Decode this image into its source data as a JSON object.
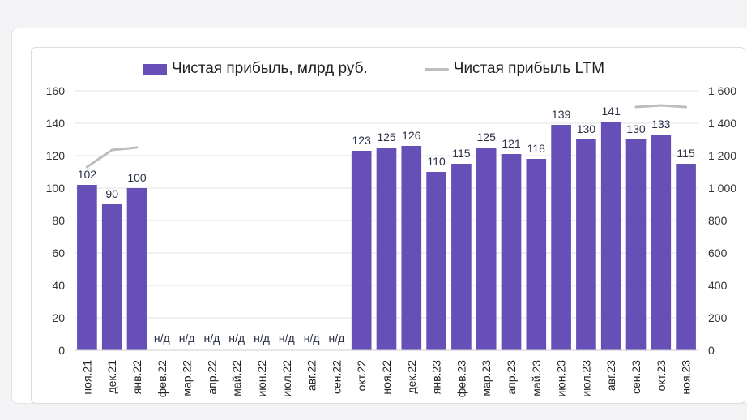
{
  "chart_data": {
    "type": "bar",
    "series": [
      {
        "name": "Чистая прибыль, млрд руб.",
        "type": "bar",
        "axis": "left",
        "color": "#6650b8",
        "values": [
          102,
          90,
          100,
          null,
          null,
          null,
          null,
          null,
          null,
          null,
          null,
          123,
          125,
          126,
          110,
          115,
          125,
          121,
          118,
          139,
          130,
          141,
          130,
          133,
          115
        ],
        "labels": [
          "102",
          "90",
          "100",
          "н/д",
          "н/д",
          "н/д",
          "н/д",
          "н/д",
          "н/д",
          "н/д",
          "н/д",
          "123",
          "125",
          "126",
          "110",
          "115",
          "125",
          "121",
          "118",
          "139",
          "130",
          "141",
          "130",
          "133",
          "115"
        ]
      },
      {
        "name": "Чистая прибыль LTM",
        "type": "line",
        "axis": "right",
        "color": "#bdbdbd",
        "values": [
          1130,
          1235,
          1250,
          null,
          null,
          null,
          null,
          null,
          null,
          null,
          null,
          null,
          null,
          null,
          null,
          null,
          null,
          null,
          null,
          null,
          null,
          null,
          1500,
          1510,
          1500
        ]
      }
    ],
    "categories": [
      "ноя.21",
      "дек.21",
      "янв.22",
      "фев.22",
      "мар.22",
      "апр.22",
      "май.22",
      "июн.22",
      "июл.22",
      "авг.22",
      "сен.22",
      "окт.22",
      "ноя.22",
      "дек.22",
      "янв.23",
      "фев.23",
      "мар.23",
      "апр.23",
      "май.23",
      "июн.23",
      "июл.23",
      "авг.23",
      "сен.23",
      "окт.23",
      "ноя.23"
    ],
    "y_left": {
      "range": [
        0,
        160
      ],
      "ticks": [
        0,
        20,
        40,
        60,
        80,
        100,
        120,
        140,
        160
      ],
      "tick_labels": [
        "0",
        "20",
        "40",
        "60",
        "80",
        "100",
        "120",
        "140",
        "160"
      ]
    },
    "y_right": {
      "range": [
        0,
        1600
      ],
      "ticks": [
        0,
        200,
        400,
        600,
        800,
        1000,
        1200,
        1400,
        1600
      ],
      "tick_labels": [
        "0",
        "200",
        "400",
        "600",
        "800",
        "1 000",
        "1 200",
        "1 400",
        "1 600"
      ]
    },
    "grid": true,
    "legend_position": "top-center"
  }
}
